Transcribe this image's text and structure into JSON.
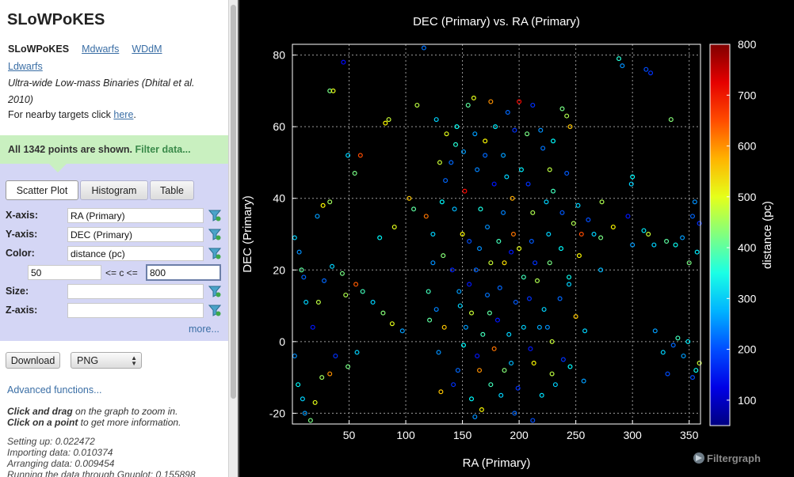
{
  "app": {
    "title": "SLoWPoKES"
  },
  "nav": {
    "current": "SLoWPoKES",
    "links": [
      "Mdwarfs",
      "WDdM",
      "Ldwarfs"
    ]
  },
  "description": "Ultra-wide Low-mass Binaries (Dhital et al. 2010)",
  "nearby": {
    "prefix": "For nearby targets click ",
    "link": "here",
    "suffix": "."
  },
  "points_shown": {
    "text": "All 1342 points are shown. ",
    "filter_link": "Filter data..."
  },
  "tabs": {
    "scatter": "Scatter Plot",
    "histogram": "Histogram",
    "table": "Table"
  },
  "fields": {
    "x_label": "X-axis:",
    "x_value": "RA (Primary)",
    "y_label": "Y-axis:",
    "y_value": "DEC (Primary)",
    "color_label": "Color:",
    "color_value": "distance (pc)",
    "range_min": "50",
    "range_op": "<= c <=",
    "range_max": "800",
    "size_label": "Size:",
    "size_value": "",
    "z_label": "Z-axis:",
    "z_value": ""
  },
  "more_link": "more...",
  "download": {
    "button": "Download",
    "format": "PNG"
  },
  "advanced_link": "Advanced functions...",
  "help": {
    "drag_bold": "Click and drag",
    "drag_rest": " on the graph to zoom in.",
    "point_bold": "Click on a point",
    "point_rest": " to get more information."
  },
  "timings": [
    "Setting up: 0.022472",
    "Importing data: 0.010374",
    "Arranging data: 0.009454",
    "Running the data through Gnuplot: 0.155898"
  ],
  "branding": {
    "logo_text": "Filtergraph"
  },
  "colors": {
    "sidebar_bg": "#ffffff",
    "notice_bg": "#c9f0c0",
    "controls_bg": "#d4d6f5",
    "link": "#3a6ea5",
    "plot_bg": "#000000"
  },
  "chart_data": {
    "type": "scatter",
    "title": "DEC (Primary) vs. RA (Primary)",
    "xlabel": "RA (Primary)",
    "ylabel": "DEC (Primary)",
    "colorbar_label": "distance (pc)",
    "xlim": [
      0,
      360
    ],
    "ylim": [
      -23,
      83
    ],
    "clim": [
      50,
      800
    ],
    "xticks": [
      50,
      100,
      150,
      200,
      250,
      300,
      350
    ],
    "yticks": [
      -20,
      0,
      20,
      40,
      60,
      80
    ],
    "cticks": [
      100,
      200,
      300,
      400,
      500,
      600,
      700,
      800
    ],
    "grid": true,
    "colormap": "jet",
    "n_points": 1342,
    "points": [
      [
        45,
        78,
        150
      ],
      [
        116,
        82,
        230
      ],
      [
        33,
        70,
        420
      ],
      [
        36,
        70,
        500
      ],
      [
        82,
        61,
        520
      ],
      [
        85,
        62,
        480
      ],
      [
        110,
        66,
        470
      ],
      [
        127,
        62,
        300
      ],
      [
        140,
        50,
        220
      ],
      [
        155,
        66,
        400
      ],
      [
        160,
        68,
        500
      ],
      [
        175,
        67,
        600
      ],
      [
        190,
        64,
        220
      ],
      [
        200,
        67,
        700
      ],
      [
        212,
        66,
        180
      ],
      [
        230,
        56,
        330
      ],
      [
        238,
        65,
        420
      ],
      [
        242,
        63,
        460
      ],
      [
        245,
        60,
        560
      ],
      [
        288,
        79,
        360
      ],
      [
        291,
        77,
        250
      ],
      [
        312,
        76,
        200
      ],
      [
        316,
        75,
        180
      ],
      [
        334,
        62,
        430
      ],
      [
        27,
        38,
        520
      ],
      [
        22,
        35,
        260
      ],
      [
        33,
        39,
        450
      ],
      [
        49,
        52,
        300
      ],
      [
        55,
        47,
        420
      ],
      [
        60,
        52,
        650
      ],
      [
        77,
        29,
        330
      ],
      [
        90,
        32,
        500
      ],
      [
        103,
        40,
        560
      ],
      [
        107,
        37,
        400
      ],
      [
        118,
        35,
        620
      ],
      [
        124,
        30,
        300
      ],
      [
        130,
        50,
        480
      ],
      [
        135,
        45,
        220
      ],
      [
        144,
        55,
        360
      ],
      [
        152,
        42,
        700
      ],
      [
        163,
        48,
        240
      ],
      [
        170,
        56,
        520
      ],
      [
        178,
        44,
        160
      ],
      [
        186,
        52,
        260
      ],
      [
        194,
        40,
        580
      ],
      [
        202,
        48,
        320
      ],
      [
        212,
        36,
        460
      ],
      [
        221,
        54,
        230
      ],
      [
        230,
        42,
        380
      ],
      [
        242,
        47,
        210
      ],
      [
        248,
        33,
        460
      ],
      [
        252,
        38,
        300
      ],
      [
        253,
        24,
        520
      ],
      [
        255,
        30,
        650
      ],
      [
        261,
        34,
        200
      ],
      [
        266,
        30,
        300
      ],
      [
        272,
        29,
        420
      ],
      [
        272,
        20,
        280
      ],
      [
        273,
        39,
        460
      ],
      [
        283,
        32,
        520
      ],
      [
        296,
        35,
        160
      ],
      [
        299,
        44,
        300
      ],
      [
        300,
        46,
        330
      ],
      [
        300,
        27,
        260
      ],
      [
        310,
        31,
        320
      ],
      [
        314,
        30,
        480
      ],
      [
        319,
        27,
        300
      ],
      [
        330,
        28,
        400
      ],
      [
        338,
        27,
        340
      ],
      [
        344,
        29,
        260
      ],
      [
        353,
        35,
        220
      ],
      [
        350,
        22,
        420
      ],
      [
        355,
        39,
        250
      ],
      [
        357,
        25,
        320
      ],
      [
        359,
        33,
        180
      ],
      [
        2,
        29,
        300
      ],
      [
        6,
        25,
        250
      ],
      [
        8,
        20,
        400
      ],
      [
        10,
        18,
        220
      ],
      [
        12,
        11,
        300
      ],
      [
        18,
        4,
        160
      ],
      [
        23,
        11,
        470
      ],
      [
        28,
        17,
        220
      ],
      [
        35,
        21,
        300
      ],
      [
        44,
        19,
        420
      ],
      [
        47,
        13,
        460
      ],
      [
        56,
        16,
        640
      ],
      [
        62,
        14,
        380
      ],
      [
        71,
        11,
        300
      ],
      [
        80,
        8,
        430
      ],
      [
        88,
        5,
        500
      ],
      [
        97,
        3,
        260
      ],
      [
        120,
        14,
        380
      ],
      [
        127,
        9,
        240
      ],
      [
        134,
        4,
        560
      ],
      [
        141,
        20,
        170
      ],
      [
        147,
        14,
        260
      ],
      [
        151,
        -1,
        330
      ],
      [
        158,
        8,
        480
      ],
      [
        163,
        -4,
        160
      ],
      [
        168,
        2,
        380
      ],
      [
        172,
        13,
        230
      ],
      [
        178,
        -2,
        620
      ],
      [
        181,
        6,
        160
      ],
      [
        187,
        22,
        540
      ],
      [
        193,
        -6,
        280
      ],
      [
        197,
        11,
        210
      ],
      [
        204,
        4,
        300
      ],
      [
        210,
        -2,
        160
      ],
      [
        216,
        17,
        460
      ],
      [
        222,
        9,
        300
      ],
      [
        229,
        0,
        480
      ],
      [
        236,
        12,
        220
      ],
      [
        239,
        -5,
        180
      ],
      [
        244,
        18,
        340
      ],
      [
        250,
        7,
        560
      ],
      [
        258,
        3,
        300
      ],
      [
        320,
        3,
        260
      ],
      [
        327,
        -3,
        300
      ],
      [
        331,
        -9,
        200
      ],
      [
        336,
        -1,
        220
      ],
      [
        340,
        1,
        380
      ],
      [
        345,
        -4,
        260
      ],
      [
        349,
        0,
        320
      ],
      [
        353,
        -10,
        200
      ],
      [
        356,
        -8,
        340
      ],
      [
        359,
        -6,
        480
      ],
      [
        2,
        -4,
        250
      ],
      [
        5,
        -12,
        330
      ],
      [
        9,
        -16,
        300
      ],
      [
        11,
        -20,
        260
      ],
      [
        16,
        -22,
        420
      ],
      [
        20,
        -17,
        500
      ],
      [
        26,
        -10,
        450
      ],
      [
        33,
        -9,
        600
      ],
      [
        38,
        -4,
        180
      ],
      [
        49,
        -7,
        420
      ],
      [
        57,
        -3,
        300
      ],
      [
        131,
        -14,
        560
      ],
      [
        142,
        -12,
        180
      ],
      [
        158,
        -16,
        330
      ],
      [
        161,
        -21,
        250
      ],
      [
        167,
        -19,
        520
      ],
      [
        175,
        -12,
        380
      ],
      [
        187,
        -8,
        430
      ],
      [
        196,
        -20,
        220
      ],
      [
        212,
        -22,
        200
      ],
      [
        220,
        -15,
        310
      ],
      [
        229,
        -9,
        470
      ],
      [
        245,
        -7,
        330
      ],
      [
        257,
        -11,
        260
      ],
      [
        172,
        32,
        250
      ],
      [
        182,
        28,
        380
      ],
      [
        193,
        25,
        160
      ],
      [
        162,
        20,
        220
      ],
      [
        204,
        18,
        380
      ],
      [
        150,
        30,
        520
      ],
      [
        211,
        28,
        210
      ],
      [
        226,
        30,
        300
      ],
      [
        133,
        24,
        430
      ],
      [
        143,
        37,
        280
      ],
      [
        156,
        28,
        200
      ],
      [
        166,
        37,
        350
      ],
      [
        175,
        22,
        480
      ],
      [
        186,
        36,
        240
      ],
      [
        195,
        30,
        620
      ],
      [
        214,
        22,
        180
      ],
      [
        224,
        39,
        300
      ],
      [
        148,
        10,
        300
      ],
      [
        156,
        16,
        160
      ],
      [
        165,
        26,
        250
      ],
      [
        174,
        8,
        400
      ],
      [
        183,
        15,
        220
      ],
      [
        191,
        2,
        300
      ],
      [
        200,
        26,
        500
      ],
      [
        209,
        12,
        180
      ],
      [
        218,
        4,
        270
      ],
      [
        227,
        22,
        420
      ],
      [
        237,
        26,
        330
      ],
      [
        161,
        58,
        260
      ],
      [
        179,
        60,
        320
      ],
      [
        196,
        59,
        180
      ],
      [
        207,
        58,
        420
      ],
      [
        219,
        59,
        250
      ],
      [
        145,
        60,
        340
      ],
      [
        136,
        58,
        500
      ],
      [
        170,
        52,
        220
      ],
      [
        151,
        53,
        260
      ],
      [
        189,
        46,
        300
      ],
      [
        208,
        44,
        180
      ],
      [
        227,
        48,
        470
      ],
      [
        238,
        36,
        210
      ],
      [
        132,
        39,
        330
      ],
      [
        124,
        22,
        250
      ],
      [
        244,
        16,
        300
      ],
      [
        121,
        6,
        400
      ],
      [
        129,
        -3,
        250
      ],
      [
        146,
        -8,
        220
      ],
      [
        153,
        4,
        260
      ],
      [
        165,
        -8,
        600
      ],
      [
        184,
        -15,
        300
      ],
      [
        199,
        -13,
        180
      ],
      [
        213,
        -6,
        520
      ],
      [
        225,
        4,
        250
      ],
      [
        232,
        -12,
        300
      ]
    ]
  }
}
